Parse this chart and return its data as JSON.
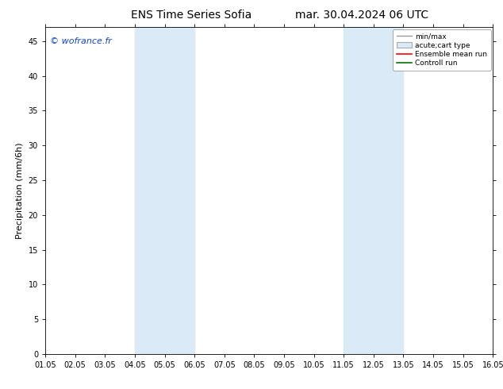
{
  "title_left": "ENS Time Series Sofia",
  "title_right": "mar. 30.04.2024 06 UTC",
  "ylabel": "Precipitation (mm/6h)",
  "watermark": "© wofrance.fr",
  "xlim": [
    0,
    15
  ],
  "ylim": [
    0,
    47
  ],
  "yticks": [
    0,
    5,
    10,
    15,
    20,
    25,
    30,
    35,
    40,
    45
  ],
  "xtick_labels": [
    "01.05",
    "02.05",
    "03.05",
    "04.05",
    "05.05",
    "06.05",
    "07.05",
    "08.05",
    "09.05",
    "10.05",
    "11.05",
    "12.05",
    "13.05",
    "14.05",
    "15.05",
    "16.05"
  ],
  "shaded_regions": [
    [
      3,
      4
    ],
    [
      4,
      5
    ],
    [
      10,
      11
    ],
    [
      11,
      12
    ]
  ],
  "shade_color": "#daeaf7",
  "background_color": "#ffffff",
  "plot_bg_color": "#ffffff",
  "legend_labels": [
    "min/max",
    "acute;cart type",
    "Ensemble mean run",
    "Controll run"
  ],
  "title_fontsize": 10,
  "tick_fontsize": 7,
  "ylabel_fontsize": 8,
  "watermark_color": "#1144cc",
  "watermark_fontsize": 8
}
